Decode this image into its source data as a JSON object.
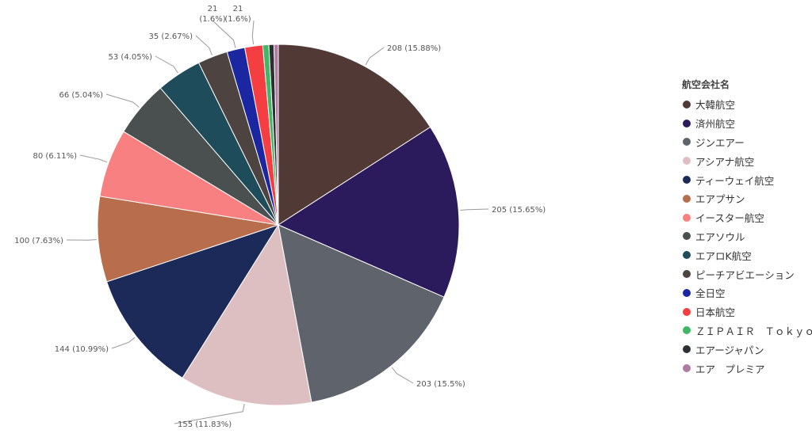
{
  "chart_data": {
    "type": "pie",
    "legend_title": "航空会社名",
    "legend_position": "right",
    "slices": [
      {
        "label": "大韓航空",
        "value": 208,
        "label_text": "208 (15.88%)",
        "color": "#513a35"
      },
      {
        "label": "済州航空",
        "value": 205,
        "label_text": "205 (15.65%)",
        "color": "#2b1a5c"
      },
      {
        "label": "ジンエアー",
        "value": 203,
        "label_text": "203 (15.5%)",
        "color": "#5e636c"
      },
      {
        "label": "アシアナ航空",
        "value": 155,
        "label_text": "155 (11.83%)",
        "color": "#debfc1"
      },
      {
        "label": "ティーウェイ航空",
        "value": 144,
        "label_text": "144 (10.99%)",
        "color": "#1b2a59"
      },
      {
        "label": "エアプサン",
        "value": 100,
        "label_text": "100 (7.63%)",
        "color": "#b86d4d"
      },
      {
        "label": "イースター航空",
        "value": 80,
        "label_text": "80 (6.11%)",
        "color": "#f98080"
      },
      {
        "label": "エアソウル",
        "value": 66,
        "label_text": "66 (5.04%)",
        "color": "#4a4f50"
      },
      {
        "label": "エアロK航空",
        "value": 53,
        "label_text": "53 (4.05%)",
        "color": "#1e4c5a"
      },
      {
        "label": "ピーチアビエーション",
        "value": 35,
        "label_text": "35 (2.67%)",
        "color": "#4d4442"
      },
      {
        "label": "全日空",
        "value": 21,
        "label_text": "21 (1.6%)",
        "color": "#1a27a0"
      },
      {
        "label": "日本航空",
        "value": 21,
        "label_text": "21 (1.6%)",
        "color": "#f43e42"
      },
      {
        "label": "ＺＩＰＡＩＲ　Ｔｏｋｙｏ",
        "value": 7,
        "label_text": "",
        "color": "#3fb765"
      },
      {
        "label": "エアージャパン",
        "value": 6,
        "label_text": "",
        "color": "#2c2f34"
      },
      {
        "label": "エア　プレミア",
        "value": 5,
        "label_text": "",
        "color": "#b07aa5"
      }
    ]
  }
}
